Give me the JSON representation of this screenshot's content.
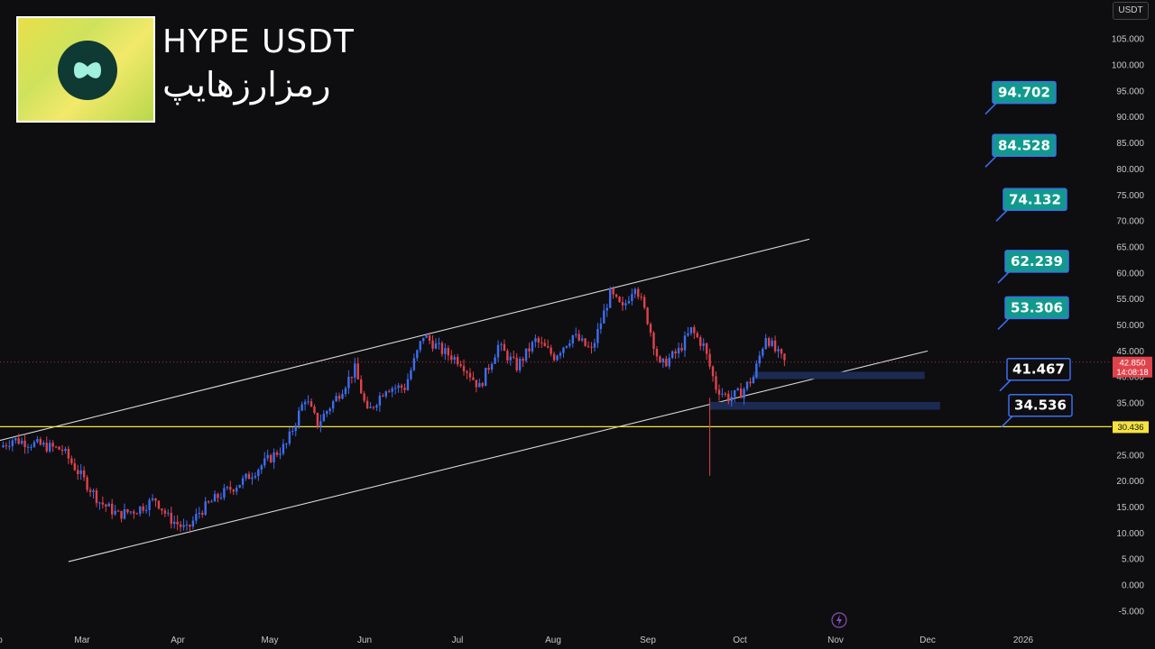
{
  "header": {
    "title_en": "HYPE USDT",
    "title_fa": "رمزارزهایپ",
    "unit": "USDT"
  },
  "colors": {
    "background": "#0e0e10",
    "up": "#3d6df0",
    "down": "#e0424b",
    "support_line": "#f5e342",
    "channel": "#d8d8d8",
    "target_fill": "#11998e",
    "zone_fill": "#1c2a52"
  },
  "chart_data": {
    "type": "candlestick",
    "title": "HYPE USDT",
    "y_unit": "USDT",
    "ylim": [
      -5,
      106
    ],
    "y_ticks": [
      "105.000",
      "100.000",
      "95.000",
      "90.000",
      "85.000",
      "80.000",
      "75.000",
      "70.000",
      "65.000",
      "60.000",
      "55.000",
      "50.000",
      "45.000",
      "40.000",
      "35.000",
      "30.000",
      "25.000",
      "20.000",
      "15.000",
      "10.000",
      "5.000",
      "0.000",
      "-5.000"
    ],
    "x_ticks": [
      "o",
      "Mar",
      "Apr",
      "May",
      "Jun",
      "Jul",
      "Aug",
      "Sep",
      "Oct",
      "Nov",
      "Dec",
      "2026"
    ],
    "price_path": [
      {
        "t": 0,
        "v": 26.5
      },
      {
        "t": 4,
        "v": 28
      },
      {
        "t": 12,
        "v": 27
      },
      {
        "t": 20,
        "v": 26
      },
      {
        "t": 26,
        "v": 21
      },
      {
        "t": 32,
        "v": 16
      },
      {
        "t": 38,
        "v": 13.5
      },
      {
        "t": 44,
        "v": 14.5
      },
      {
        "t": 50,
        "v": 16.5
      },
      {
        "t": 54,
        "v": 13
      },
      {
        "t": 60,
        "v": 10.5
      },
      {
        "t": 64,
        "v": 14
      },
      {
        "t": 70,
        "v": 17
      },
      {
        "t": 78,
        "v": 20
      },
      {
        "t": 86,
        "v": 24
      },
      {
        "t": 92,
        "v": 27
      },
      {
        "t": 98,
        "v": 36
      },
      {
        "t": 102,
        "v": 31
      },
      {
        "t": 108,
        "v": 36
      },
      {
        "t": 114,
        "v": 41.5
      },
      {
        "t": 118,
        "v": 33
      },
      {
        "t": 124,
        "v": 38
      },
      {
        "t": 130,
        "v": 38
      },
      {
        "t": 136,
        "v": 48
      },
      {
        "t": 142,
        "v": 45
      },
      {
        "t": 148,
        "v": 43
      },
      {
        "t": 154,
        "v": 38
      },
      {
        "t": 160,
        "v": 46
      },
      {
        "t": 166,
        "v": 42
      },
      {
        "t": 172,
        "v": 47
      },
      {
        "t": 178,
        "v": 44
      },
      {
        "t": 184,
        "v": 48
      },
      {
        "t": 190,
        "v": 45
      },
      {
        "t": 196,
        "v": 56
      },
      {
        "t": 200,
        "v": 53
      },
      {
        "t": 204,
        "v": 58
      },
      {
        "t": 208,
        "v": 51
      },
      {
        "t": 212,
        "v": 42
      },
      {
        "t": 218,
        "v": 45
      },
      {
        "t": 222,
        "v": 49
      },
      {
        "t": 226,
        "v": 46
      },
      {
        "t": 230,
        "v": 38
      },
      {
        "t": 234,
        "v": 36
      },
      {
        "t": 238,
        "v": 37
      },
      {
        "t": 242,
        "v": 40
      },
      {
        "t": 246,
        "v": 48
      },
      {
        "t": 249,
        "v": 45
      },
      {
        "t": 252,
        "v": 42.85
      }
    ],
    "last_price": {
      "value": 42.85,
      "label": "42.850",
      "countdown": "14:08:18"
    },
    "horizontal_line": {
      "value": 30.436,
      "label": "30.436"
    },
    "wick_low": {
      "t": 228,
      "v": 21
    },
    "targets": [
      {
        "label": "94.702",
        "value": 94.702,
        "style": "target"
      },
      {
        "label": "84.528",
        "value": 84.528,
        "style": "target"
      },
      {
        "label": "74.132",
        "value": 74.132,
        "style": "target"
      },
      {
        "label": "62.239",
        "value": 62.239,
        "style": "target"
      },
      {
        "label": "53.306",
        "value": 53.306,
        "style": "target"
      },
      {
        "label": "41.467",
        "value": 41.467,
        "style": "level"
      },
      {
        "label": "34.536",
        "value": 34.536,
        "style": "level"
      }
    ],
    "zones": [
      {
        "from": 39.6,
        "to": 41.0,
        "t_start": 242,
        "t_end": 297
      },
      {
        "from": 33.7,
        "to": 35.2,
        "t_start": 228,
        "t_end": 302
      }
    ],
    "channel": {
      "upper": [
        {
          "t": -2,
          "v": 27.5
        },
        {
          "t": 260,
          "v": 66.5
        }
      ],
      "lower": [
        {
          "t": 22,
          "v": 4.5
        },
        {
          "t": 298,
          "v": 45
        }
      ]
    }
  }
}
